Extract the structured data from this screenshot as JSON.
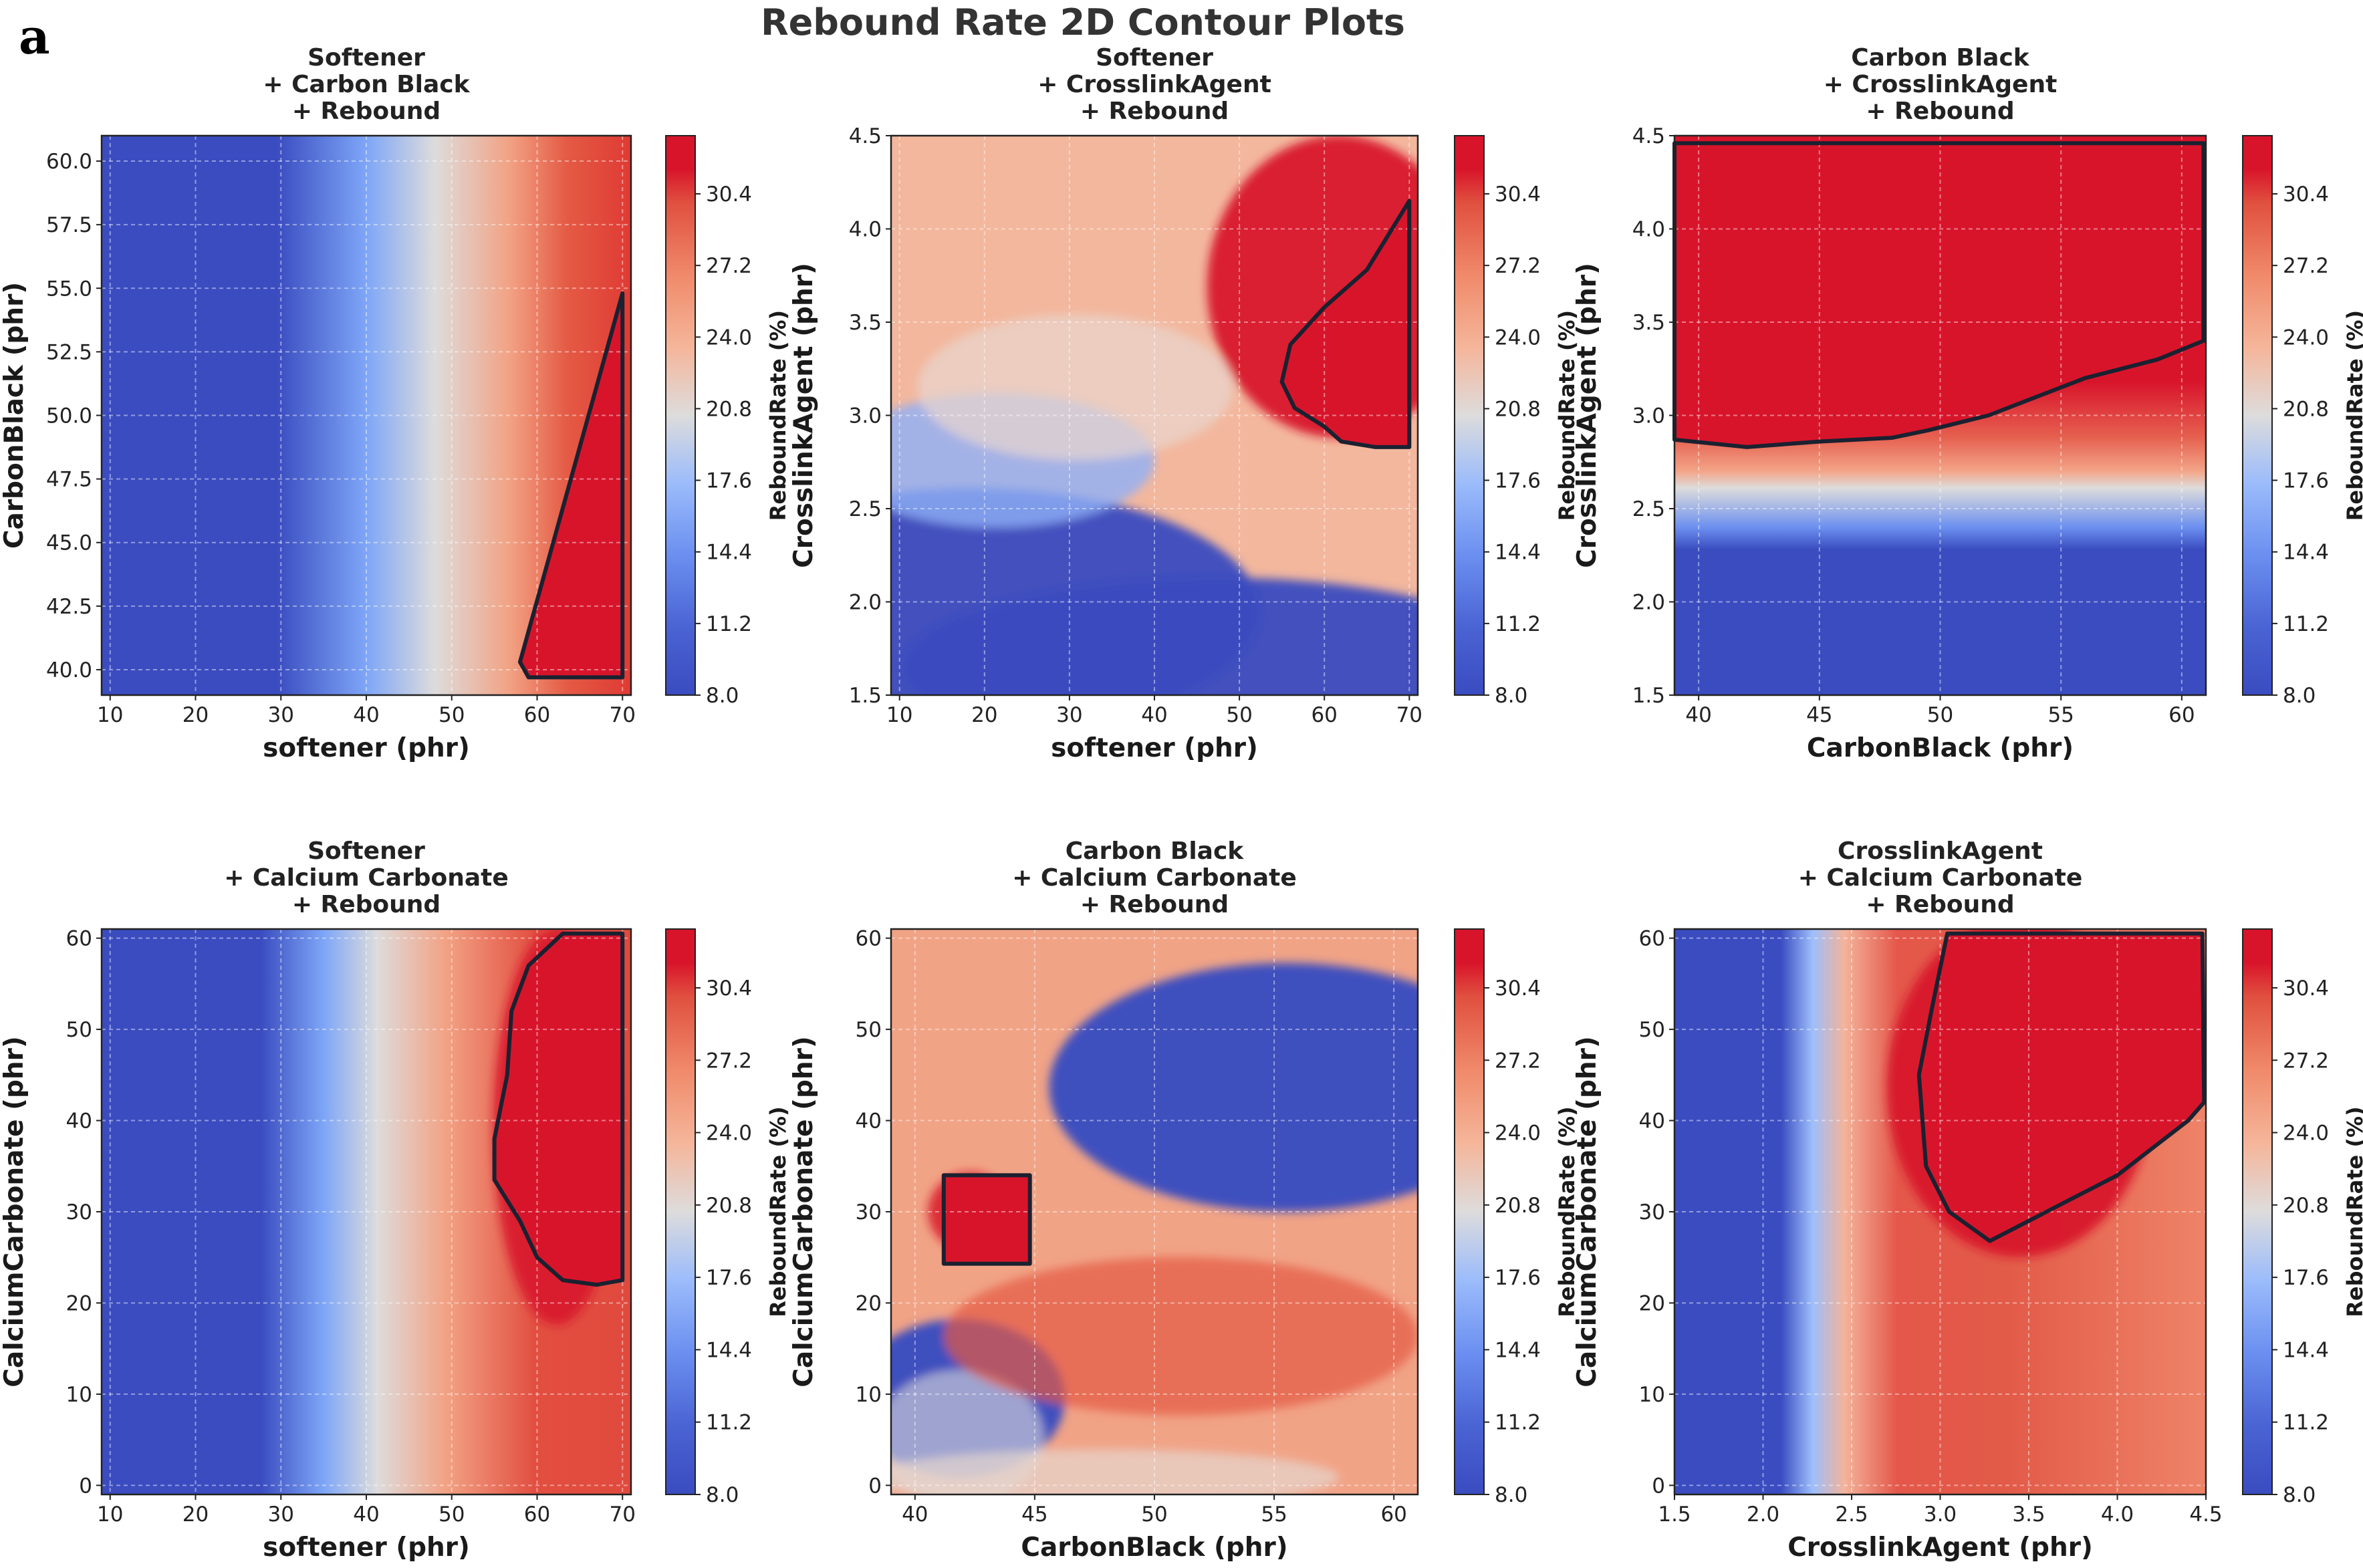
{
  "figure": {
    "panel_letter": "a",
    "title": "Rebound Rate 2D Contour Plots"
  },
  "colors": {
    "low": "#3a4cc0",
    "mid": "#dddcdc",
    "high": "#d8142b",
    "region_outline": "#1b2130"
  },
  "colorbar": {
    "label": "ReboundRate (%)",
    "ticks": [
      "8.0",
      "11.2",
      "14.4",
      "17.6",
      "20.8",
      "24.0",
      "27.2",
      "30.4"
    ],
    "range": [
      8.0,
      33.0
    ]
  },
  "chart_data": [
    {
      "type": "heatmap",
      "title_lines": [
        "Softener",
        "+ Carbon Black",
        "+ Rebound"
      ],
      "xlabel": "softener (phr)",
      "ylabel": "CarbonBlack (phr)",
      "xlim": [
        9,
        71
      ],
      "ylim": [
        39,
        61
      ],
      "xticks": [
        10,
        20,
        30,
        40,
        50,
        60,
        70
      ],
      "yticks": [
        40.0,
        42.5,
        45.0,
        47.5,
        50.0,
        52.5,
        55.0,
        57.5,
        60.0
      ],
      "xtick_labels": [
        "10",
        "20",
        "30",
        "40",
        "50",
        "60",
        "70"
      ],
      "ytick_labels": [
        "40.0",
        "42.5",
        "45.0",
        "47.5",
        "50.0",
        "52.5",
        "55.0",
        "57.5",
        "60.0"
      ],
      "colorbar_label": "ReboundRate (%)",
      "optimal_region": [
        [
          70,
          54.8
        ],
        [
          70,
          39.7
        ],
        [
          59,
          39.7
        ],
        [
          58,
          40.3
        ],
        [
          70,
          54.8
        ]
      ]
    },
    {
      "type": "heatmap",
      "title_lines": [
        "Softener",
        "+ CrosslinkAgent",
        "+ Rebound"
      ],
      "xlabel": "softener (phr)",
      "ylabel": "CrosslinkAgent (phr)",
      "xlim": [
        9,
        71
      ],
      "ylim": [
        1.5,
        4.5
      ],
      "xticks": [
        10,
        20,
        30,
        40,
        50,
        60,
        70
      ],
      "yticks": [
        1.5,
        2.0,
        2.5,
        3.0,
        3.5,
        4.0,
        4.5
      ],
      "xtick_labels": [
        "10",
        "20",
        "30",
        "40",
        "50",
        "60",
        "70"
      ],
      "ytick_labels": [
        "1.5",
        "2.0",
        "2.5",
        "3.0",
        "3.5",
        "4.0",
        "4.5"
      ],
      "colorbar_label": "ReboundRate (%)",
      "optimal_region": [
        [
          70,
          4.15
        ],
        [
          65,
          3.78
        ],
        [
          60,
          3.58
        ],
        [
          56,
          3.38
        ],
        [
          55,
          3.18
        ],
        [
          56.5,
          3.04
        ],
        [
          60,
          2.94
        ],
        [
          62,
          2.86
        ],
        [
          66,
          2.83
        ],
        [
          70,
          2.83
        ],
        [
          70,
          4.15
        ]
      ]
    },
    {
      "type": "heatmap",
      "title_lines": [
        "Carbon Black",
        "+ CrosslinkAgent",
        "+ Rebound"
      ],
      "xlabel": "CarbonBlack (phr)",
      "ylabel": "CrosslinkAgent (phr)",
      "xlim": [
        39,
        61
      ],
      "ylim": [
        1.5,
        4.5
      ],
      "xticks": [
        40,
        45,
        50,
        55,
        60
      ],
      "yticks": [
        1.5,
        2.0,
        2.5,
        3.0,
        3.5,
        4.0,
        4.5
      ],
      "xtick_labels": [
        "40",
        "45",
        "50",
        "55",
        "60"
      ],
      "ytick_labels": [
        "1.5",
        "2.0",
        "2.5",
        "3.0",
        "3.5",
        "4.0",
        "4.5"
      ],
      "colorbar_label": "ReboundRate (%)",
      "optimal_region": [
        [
          39,
          4.46
        ],
        [
          60.9,
          4.46
        ],
        [
          60.9,
          3.4
        ],
        [
          59,
          3.3
        ],
        [
          56,
          3.2
        ],
        [
          54,
          3.1
        ],
        [
          52,
          3.0
        ],
        [
          49.5,
          2.92
        ],
        [
          48,
          2.88
        ],
        [
          45,
          2.86
        ],
        [
          42,
          2.83
        ],
        [
          39,
          2.87
        ],
        [
          39,
          4.46
        ]
      ]
    },
    {
      "type": "heatmap",
      "title_lines": [
        "Softener",
        "+ Calcium Carbonate",
        "+ Rebound"
      ],
      "xlabel": "softener (phr)",
      "ylabel": "CalciumCarbonate (phr)",
      "xlim": [
        9,
        71
      ],
      "ylim": [
        -1,
        61
      ],
      "xticks": [
        10,
        20,
        30,
        40,
        50,
        60,
        70
      ],
      "yticks": [
        0,
        10,
        20,
        30,
        40,
        50,
        60
      ],
      "xtick_labels": [
        "10",
        "20",
        "30",
        "40",
        "50",
        "60",
        "70"
      ],
      "ytick_labels": [
        "0",
        "10",
        "20",
        "30",
        "40",
        "50",
        "60"
      ],
      "colorbar_label": "ReboundRate (%)",
      "optimal_region": [
        [
          63,
          60.5
        ],
        [
          70,
          60.5
        ],
        [
          70,
          22.5
        ],
        [
          67,
          22
        ],
        [
          63,
          22.5
        ],
        [
          60,
          25
        ],
        [
          58,
          29
        ],
        [
          55,
          33.5
        ],
        [
          55,
          38
        ],
        [
          56.5,
          45
        ],
        [
          57,
          52
        ],
        [
          59,
          57
        ],
        [
          63,
          60.5
        ]
      ]
    },
    {
      "type": "heatmap",
      "title_lines": [
        "Carbon Black",
        "+ Calcium Carbonate",
        "+ Rebound"
      ],
      "xlabel": "CarbonBlack (phr)",
      "ylabel": "CalciumCarbonate (phr)",
      "xlim": [
        39,
        61
      ],
      "ylim": [
        -1,
        61
      ],
      "xticks": [
        40,
        45,
        50,
        55,
        60
      ],
      "yticks": [
        0,
        10,
        20,
        30,
        40,
        50,
        60
      ],
      "xtick_labels": [
        "40",
        "45",
        "50",
        "55",
        "60"
      ],
      "ytick_labels": [
        "0",
        "10",
        "20",
        "30",
        "40",
        "50",
        "60"
      ],
      "colorbar_label": "ReboundRate (%)",
      "optimal_region": [
        [
          41.2,
          24.3
        ],
        [
          44.8,
          24.3
        ],
        [
          44.8,
          34
        ],
        [
          41.2,
          34
        ],
        [
          41.2,
          24.3
        ]
      ]
    },
    {
      "type": "heatmap",
      "title_lines": [
        "CrosslinkAgent",
        "+ Calcium Carbonate",
        "+ Rebound"
      ],
      "xlabel": "CrosslinkAgent (phr)",
      "ylabel": "CalciumCarbonate (phr)",
      "xlim": [
        1.5,
        4.5
      ],
      "ylim": [
        -1,
        61
      ],
      "xticks": [
        1.5,
        2.0,
        2.5,
        3.0,
        3.5,
        4.0,
        4.5
      ],
      "yticks": [
        0,
        10,
        20,
        30,
        40,
        50,
        60
      ],
      "xtick_labels": [
        "1.5",
        "2.0",
        "2.5",
        "3.0",
        "3.5",
        "4.0",
        "4.5"
      ],
      "ytick_labels": [
        "0",
        "10",
        "20",
        "30",
        "40",
        "50",
        "60"
      ],
      "colorbar_label": "ReboundRate (%)",
      "optimal_region": [
        [
          3.04,
          60.5
        ],
        [
          4.48,
          60.5
        ],
        [
          4.49,
          42
        ],
        [
          4.4,
          40
        ],
        [
          4.0,
          34
        ],
        [
          3.6,
          30
        ],
        [
          3.28,
          26.8
        ],
        [
          3.05,
          30
        ],
        [
          2.92,
          35
        ],
        [
          2.88,
          45
        ],
        [
          2.95,
          52
        ],
        [
          3.04,
          60.5
        ]
      ]
    }
  ]
}
